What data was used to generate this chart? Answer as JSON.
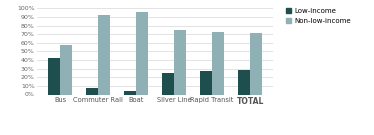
{
  "categories": [
    "Bus",
    "Commuter Rail",
    "Boat",
    "Silver Line",
    "Rapid Transit",
    "TOTAL"
  ],
  "low_income": [
    0.42,
    0.08,
    0.04,
    0.25,
    0.27,
    0.29
  ],
  "non_low_income": [
    0.58,
    0.92,
    0.96,
    0.75,
    0.73,
    0.71
  ],
  "low_income_color": "#1f4e4e",
  "non_low_income_color": "#8fb0b5",
  "bar_width": 0.32,
  "ylim": [
    0,
    1.05
  ],
  "yticks": [
    0.0,
    0.1,
    0.2,
    0.3,
    0.4,
    0.5,
    0.6,
    0.7,
    0.8,
    0.9,
    1.0
  ],
  "ytick_labels": [
    "0%",
    "10%",
    "20%",
    "30%",
    "40%",
    "50%",
    "60%",
    "70%",
    "80%",
    "90%",
    "100%"
  ],
  "legend_labels": [
    "Low-income",
    "Non-low-income"
  ],
  "background_color": "#ffffff",
  "grid_color": "#d8d8d8",
  "label_fontsize": 4.8,
  "tick_fontsize": 4.5,
  "legend_fontsize": 5.0,
  "total_label_fontsize": 5.5
}
